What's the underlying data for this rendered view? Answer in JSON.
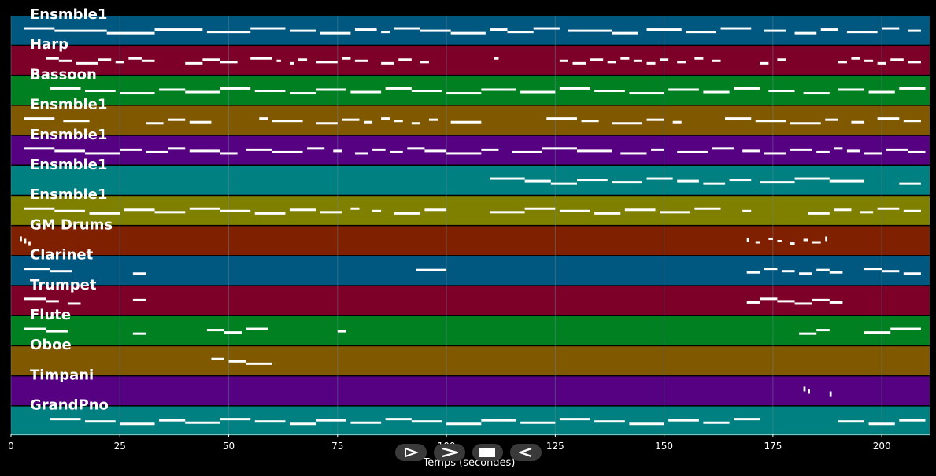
{
  "colors": {
    "background": "#000000",
    "grid": "#6a8a9a",
    "note": "#ffffff",
    "controls": "#3a3a3a"
  },
  "controls": [
    {
      "name": "play-button",
      "icon": "play-icon"
    },
    {
      "name": "forward-button",
      "icon": "chevron-right-icon"
    },
    {
      "name": "stop-button",
      "icon": "stop-icon"
    },
    {
      "name": "rewind-button",
      "icon": "chevron-left-icon"
    }
  ],
  "chart_data": {
    "type": "piano-roll",
    "xlabel": "Temps (secondes)",
    "xlim": [
      0,
      211
    ],
    "xticks": [
      0,
      25,
      50,
      75,
      100,
      125,
      150,
      175,
      200
    ],
    "grid": true,
    "tracks": [
      {
        "name": "Ensmble1",
        "color": "#00577f",
        "segments": [
          [
            3,
            10
          ],
          [
            10,
            22
          ],
          [
            22,
            33
          ],
          [
            33,
            44
          ],
          [
            45,
            55
          ],
          [
            55,
            63
          ],
          [
            64,
            70
          ],
          [
            71,
            78
          ],
          [
            79,
            84
          ],
          [
            85,
            87
          ],
          [
            88,
            94
          ],
          [
            94,
            101
          ],
          [
            101,
            109
          ],
          [
            110,
            114
          ],
          [
            114,
            120
          ],
          [
            120,
            126
          ],
          [
            128,
            138
          ],
          [
            138,
            144
          ],
          [
            146,
            154
          ],
          [
            155,
            162
          ],
          [
            163,
            170
          ],
          [
            173,
            178
          ],
          [
            180,
            185
          ],
          [
            186,
            190
          ],
          [
            192,
            199
          ],
          [
            200,
            204
          ],
          [
            206,
            209
          ]
        ]
      },
      {
        "name": "Harp",
        "color": "#7d0028",
        "segments": [
          [
            8,
            11
          ],
          [
            11,
            14
          ],
          [
            15,
            20
          ],
          [
            20,
            23
          ],
          [
            24,
            26
          ],
          [
            27,
            30
          ],
          [
            30,
            33
          ],
          [
            40,
            44
          ],
          [
            44,
            48
          ],
          [
            48,
            52
          ],
          [
            55,
            60
          ],
          [
            61,
            62
          ],
          [
            64,
            65
          ],
          [
            66,
            68
          ],
          [
            70,
            75
          ],
          [
            76,
            78
          ],
          [
            79,
            82
          ],
          [
            85,
            88
          ],
          [
            89,
            92
          ],
          [
            94,
            96
          ],
          [
            111,
            112
          ],
          [
            126,
            128
          ],
          [
            129,
            132
          ],
          [
            133,
            136
          ],
          [
            137,
            139
          ],
          [
            140,
            142
          ],
          [
            143,
            145
          ],
          [
            146,
            148
          ],
          [
            149,
            151
          ],
          [
            153,
            155
          ],
          [
            157,
            159
          ],
          [
            161,
            163
          ],
          [
            172,
            174
          ],
          [
            176,
            178
          ],
          [
            190,
            192
          ],
          [
            193,
            195
          ],
          [
            196,
            198
          ],
          [
            199,
            201
          ],
          [
            202,
            205
          ],
          [
            206,
            209
          ]
        ]
      },
      {
        "name": "Bassoon",
        "color": "#008020",
        "segments": [
          [
            9,
            16
          ],
          [
            17,
            24
          ],
          [
            25,
            33
          ],
          [
            34,
            40
          ],
          [
            40,
            48
          ],
          [
            48,
            55
          ],
          [
            56,
            63
          ],
          [
            64,
            70
          ],
          [
            70,
            77
          ],
          [
            78,
            85
          ],
          [
            86,
            92
          ],
          [
            92,
            99
          ],
          [
            100,
            108
          ],
          [
            108,
            116
          ],
          [
            117,
            125
          ],
          [
            126,
            133
          ],
          [
            134,
            141
          ],
          [
            142,
            150
          ],
          [
            151,
            158
          ],
          [
            159,
            165
          ],
          [
            166,
            172
          ],
          [
            174,
            180
          ],
          [
            182,
            188
          ],
          [
            190,
            196
          ],
          [
            197,
            203
          ],
          [
            204,
            210
          ]
        ]
      },
      {
        "name": "Ensmble1",
        "color": "#7f5800",
        "segments": [
          [
            3,
            10
          ],
          [
            12,
            18
          ],
          [
            31,
            35
          ],
          [
            36,
            40
          ],
          [
            41,
            46
          ],
          [
            57,
            59
          ],
          [
            60,
            67
          ],
          [
            70,
            75
          ],
          [
            76,
            80
          ],
          [
            81,
            83
          ],
          [
            85,
            87
          ],
          [
            88,
            90
          ],
          [
            92,
            94
          ],
          [
            96,
            98
          ],
          [
            101,
            108
          ],
          [
            123,
            130
          ],
          [
            131,
            135
          ],
          [
            138,
            145
          ],
          [
            146,
            150
          ],
          [
            152,
            154
          ],
          [
            164,
            170
          ],
          [
            171,
            178
          ],
          [
            179,
            186
          ],
          [
            187,
            190
          ],
          [
            193,
            196
          ],
          [
            199,
            204
          ],
          [
            205,
            209
          ]
        ]
      },
      {
        "name": "Ensmble1",
        "color": "#560082",
        "segments": [
          [
            3,
            10
          ],
          [
            10,
            17
          ],
          [
            17,
            25
          ],
          [
            25,
            30
          ],
          [
            31,
            36
          ],
          [
            36,
            40
          ],
          [
            41,
            48
          ],
          [
            48,
            52
          ],
          [
            54,
            60
          ],
          [
            60,
            67
          ],
          [
            68,
            72
          ],
          [
            74,
            76
          ],
          [
            79,
            82
          ],
          [
            83,
            86
          ],
          [
            87,
            90
          ],
          [
            91,
            95
          ],
          [
            95,
            100
          ],
          [
            100,
            108
          ],
          [
            108,
            112
          ],
          [
            115,
            122
          ],
          [
            122,
            130
          ],
          [
            130,
            138
          ],
          [
            140,
            146
          ],
          [
            147,
            150
          ],
          [
            153,
            160
          ],
          [
            161,
            166
          ],
          [
            168,
            172
          ],
          [
            173,
            178
          ],
          [
            179,
            184
          ],
          [
            185,
            188
          ],
          [
            189,
            191
          ],
          [
            192,
            195
          ],
          [
            196,
            200
          ],
          [
            201,
            206
          ],
          [
            206,
            210
          ]
        ]
      },
      {
        "name": "Ensmble1",
        "color": "#008080",
        "segments": [
          [
            110,
            118
          ],
          [
            118,
            124
          ],
          [
            124,
            130
          ],
          [
            130,
            137
          ],
          [
            138,
            145
          ],
          [
            146,
            152
          ],
          [
            153,
            158
          ],
          [
            159,
            164
          ],
          [
            165,
            170
          ],
          [
            172,
            180
          ],
          [
            180,
            188
          ],
          [
            188,
            196
          ],
          [
            204,
            209
          ]
        ]
      },
      {
        "name": "Ensmble1",
        "color": "#7f7f00",
        "segments": [
          [
            3,
            10
          ],
          [
            10,
            17
          ],
          [
            18,
            25
          ],
          [
            26,
            33
          ],
          [
            33,
            40
          ],
          [
            41,
            48
          ],
          [
            48,
            55
          ],
          [
            56,
            63
          ],
          [
            64,
            70
          ],
          [
            71,
            76
          ],
          [
            78,
            80
          ],
          [
            83,
            85
          ],
          [
            88,
            94
          ],
          [
            95,
            100
          ],
          [
            110,
            118
          ],
          [
            118,
            125
          ],
          [
            126,
            133
          ],
          [
            134,
            140
          ],
          [
            141,
            148
          ],
          [
            149,
            156
          ],
          [
            157,
            163
          ],
          [
            168,
            170
          ],
          [
            183,
            188
          ],
          [
            189,
            193
          ],
          [
            195,
            198
          ],
          [
            199,
            204
          ],
          [
            205,
            209
          ]
        ]
      },
      {
        "name": "GM Drums",
        "color": "#7f2000",
        "segments": [
          [
            2,
            2.5
          ],
          [
            3,
            3.5
          ],
          [
            4,
            4.5
          ],
          [
            169,
            169.5
          ],
          [
            171,
            172
          ],
          [
            174,
            175
          ],
          [
            176,
            177
          ],
          [
            179,
            180
          ],
          [
            182,
            183
          ],
          [
            184,
            186
          ],
          [
            187,
            187.5
          ]
        ]
      },
      {
        "name": "Clarinet",
        "color": "#00577f",
        "segments": [
          [
            3,
            9
          ],
          [
            9,
            14
          ],
          [
            28,
            31
          ],
          [
            93,
            100
          ],
          [
            169,
            172
          ],
          [
            173,
            176
          ],
          [
            177,
            180
          ],
          [
            181,
            184
          ],
          [
            185,
            188
          ],
          [
            188,
            191
          ],
          [
            196,
            200
          ],
          [
            200,
            204
          ],
          [
            205,
            209
          ]
        ]
      },
      {
        "name": "Trumpet",
        "color": "#7d0028",
        "segments": [
          [
            3,
            8
          ],
          [
            8,
            11
          ],
          [
            13,
            16
          ],
          [
            28,
            31
          ],
          [
            169,
            172
          ],
          [
            172,
            176
          ],
          [
            176,
            180
          ],
          [
            180,
            184
          ],
          [
            184,
            188
          ],
          [
            188,
            191
          ]
        ]
      },
      {
        "name": "Flute",
        "color": "#008020",
        "segments": [
          [
            3,
            8
          ],
          [
            8,
            13
          ],
          [
            28,
            31
          ],
          [
            45,
            49
          ],
          [
            49,
            53
          ],
          [
            54,
            59
          ],
          [
            75,
            77
          ],
          [
            181,
            185
          ],
          [
            185,
            188
          ],
          [
            196,
            202
          ],
          [
            202,
            209
          ]
        ]
      },
      {
        "name": "Oboe",
        "color": "#7f5800",
        "segments": [
          [
            46,
            49
          ],
          [
            50,
            54
          ],
          [
            54,
            60
          ]
        ]
      },
      {
        "name": "Timpani",
        "color": "#560082",
        "segments": [
          [
            182,
            182.5
          ],
          [
            183,
            183.5
          ],
          [
            188,
            188.5
          ]
        ]
      },
      {
        "name": "GrandPno",
        "color": "#008080",
        "segments": [
          [
            9,
            16
          ],
          [
            17,
            24
          ],
          [
            25,
            33
          ],
          [
            34,
            40
          ],
          [
            40,
            48
          ],
          [
            48,
            55
          ],
          [
            56,
            63
          ],
          [
            64,
            70
          ],
          [
            70,
            77
          ],
          [
            78,
            85
          ],
          [
            86,
            92
          ],
          [
            92,
            99
          ],
          [
            100,
            108
          ],
          [
            108,
            116
          ],
          [
            117,
            125
          ],
          [
            126,
            133
          ],
          [
            134,
            141
          ],
          [
            142,
            150
          ],
          [
            151,
            158
          ],
          [
            159,
            165
          ],
          [
            166,
            172
          ],
          [
            190,
            196
          ],
          [
            197,
            203
          ],
          [
            204,
            210
          ]
        ]
      }
    ]
  }
}
